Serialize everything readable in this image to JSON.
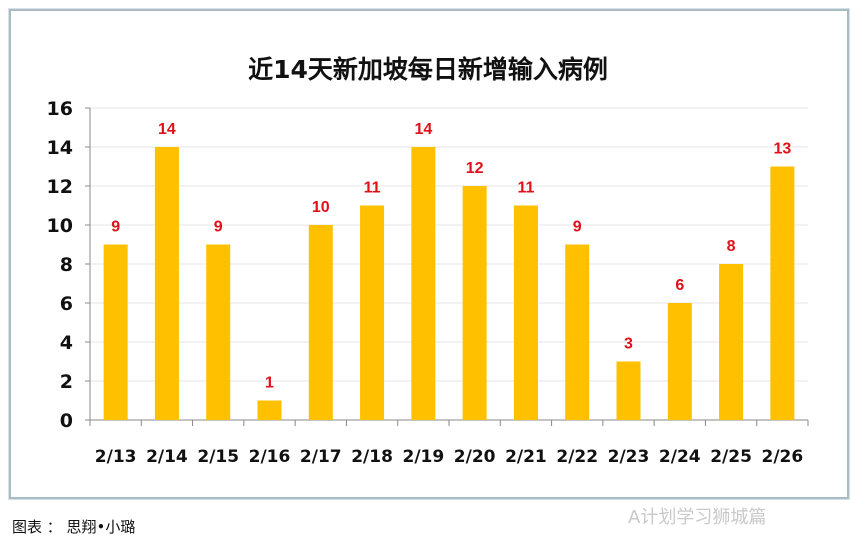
{
  "chart_data": {
    "type": "bar",
    "title": "近14天新加坡每日新增输入病例",
    "categories": [
      "2/13",
      "2/14",
      "2/15",
      "2/16",
      "2/17",
      "2/18",
      "2/19",
      "2/20",
      "2/21",
      "2/22",
      "2/23",
      "2/24",
      "2/25",
      "2/26"
    ],
    "values": [
      9,
      14,
      9,
      1,
      10,
      11,
      14,
      12,
      11,
      9,
      3,
      6,
      8,
      13
    ],
    "ylim": [
      0,
      16
    ],
    "yticks": [
      0,
      2,
      4,
      6,
      8,
      10,
      12,
      14,
      16
    ],
    "grid": true,
    "data_labels": true,
    "colors": {
      "bar": "#FFC000",
      "label": "#E0101A",
      "grid": "#e6e6e6"
    }
  },
  "caption": "图表 ： 思翔•小璐",
  "watermark": "A计划学习狮城篇"
}
